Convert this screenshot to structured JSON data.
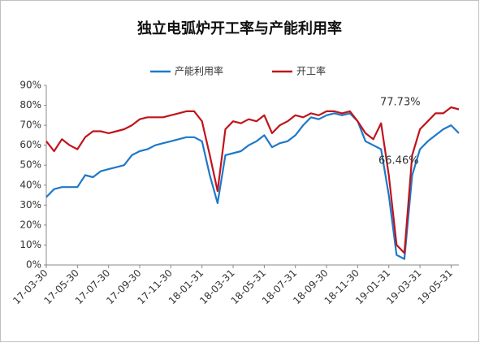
{
  "chart_data": {
    "type": "line",
    "title": "独立电弧炉开工率与产能利用率",
    "categories": [
      "17-03-30",
      null,
      null,
      null,
      "17-05-30",
      null,
      null,
      null,
      "17-07-30",
      null,
      null,
      null,
      "17-09-30",
      null,
      null,
      null,
      "17-11-30",
      null,
      null,
      null,
      "18-01-31",
      null,
      null,
      null,
      "18-03-31",
      null,
      null,
      null,
      "18-05-31",
      null,
      null,
      null,
      "18-07-31",
      null,
      null,
      null,
      "18-09-30",
      null,
      null,
      null,
      "18-11-30",
      null,
      null,
      null,
      "19-01-31",
      null,
      null,
      null,
      "19-03-31",
      null,
      null,
      null,
      "19-05-31",
      null
    ],
    "series": [
      {
        "name": "产能利用率",
        "color": "#1f78c8",
        "values": [
          34,
          38,
          39,
          39,
          39,
          45,
          44,
          47,
          48,
          49,
          50,
          55,
          57,
          58,
          60,
          61,
          62,
          63,
          64,
          64,
          62,
          45,
          31,
          55,
          56,
          57,
          60,
          62,
          65,
          59,
          61,
          62,
          65,
          70,
          74,
          73,
          75,
          76,
          75,
          76,
          72,
          62,
          60,
          58,
          35,
          5,
          3,
          45,
          58,
          62,
          65,
          68,
          70,
          66
        ]
      },
      {
        "name": "开工率",
        "color": "#c0141b",
        "values": [
          62,
          57,
          63,
          60,
          58,
          64,
          67,
          67,
          66,
          67,
          68,
          70,
          73,
          74,
          74,
          74,
          75,
          76,
          77,
          77,
          72,
          55,
          37,
          68,
          72,
          71,
          73,
          72,
          75,
          66,
          70,
          72,
          75,
          74,
          76,
          75,
          77,
          77,
          76,
          77,
          72,
          66,
          63,
          71,
          45,
          10,
          6,
          55,
          68,
          72,
          76,
          76,
          79,
          78
        ]
      }
    ],
    "annotations": [
      "77.73%",
      "66.46%"
    ],
    "ylim": [
      0,
      90
    ],
    "yticks": [
      {
        "value": 0,
        "label": "0%"
      },
      {
        "value": 10,
        "label": "10%"
      },
      {
        "value": 20,
        "label": "20%"
      },
      {
        "value": 30,
        "label": "30%"
      },
      {
        "value": 40,
        "label": "40%"
      },
      {
        "value": 50,
        "label": "50%"
      },
      {
        "value": 60,
        "label": "60%"
      },
      {
        "value": 70,
        "label": "70%"
      },
      {
        "value": 80,
        "label": "80%"
      },
      {
        "value": 90,
        "label": "90%"
      }
    ]
  }
}
